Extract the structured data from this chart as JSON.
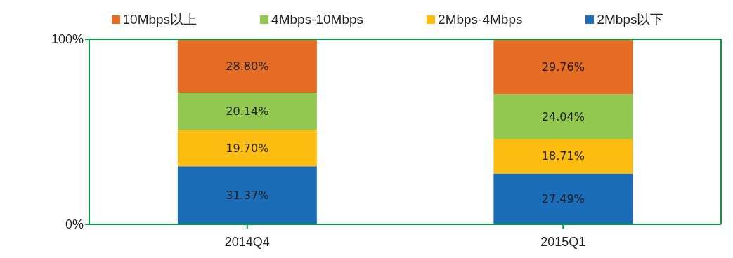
{
  "chart_data": {
    "type": "bar",
    "stacked": true,
    "categories": [
      "2014Q4",
      "2015Q1"
    ],
    "series": [
      {
        "name": "2Mbps以下",
        "color": "#1b6db8",
        "values": [
          31.37,
          27.49
        ],
        "value_labels": [
          "31.37%",
          "27.49%"
        ]
      },
      {
        "name": "2Mbps-4Mbps",
        "color": "#fdbd10",
        "values": [
          19.7,
          18.71
        ],
        "value_labels": [
          "19.70%",
          "18.71%"
        ]
      },
      {
        "name": "4Mbps-10Mbps",
        "color": "#92c850",
        "values": [
          20.14,
          24.04
        ],
        "value_labels": [
          "20.14%",
          "24.04%"
        ]
      },
      {
        "name": "10Mbps以上",
        "color": "#e46c25",
        "values": [
          28.8,
          29.76
        ],
        "value_labels": [
          "28.80%",
          "29.76%"
        ]
      }
    ],
    "ylim": [
      0,
      100
    ],
    "yticks": [
      {
        "value": 0,
        "label": "0%"
      },
      {
        "value": 100,
        "label": "100%"
      }
    ],
    "legend": "top"
  }
}
